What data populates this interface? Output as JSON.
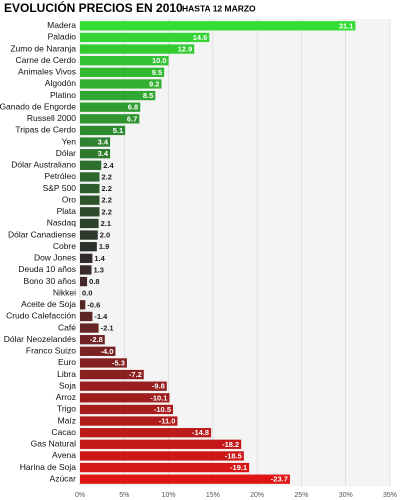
{
  "chart_data": {
    "type": "hbar",
    "title": "EVOLUCIÓN PRECIOS EN 2010",
    "subtitle": "HASTA 12 MARZO",
    "categories": [
      "Madera",
      "Paladio",
      "Zumo de Naranja",
      "Carne de Cerdo",
      "Animales Vivos",
      "Algodón",
      "Platino",
      "Ganado de Engorde",
      "Russell 2000",
      "Tripas de Cerdo",
      "Yen",
      "Dólar",
      "Dólar Australiano",
      "Petróleo",
      "S&P 500",
      "Oro",
      "Plata",
      "Nasdaq",
      "Dólar Canadiense",
      "Cobre",
      "Dow Jones",
      "Deuda 10 años",
      "Bono 30 años",
      "Nikkei",
      "Aceite de Soja",
      "Crudo Calefacción",
      "Café",
      "Dólar Neozelandés",
      "Franco Suizo",
      "Euro",
      "Libra",
      "Soja",
      "Arroz",
      "Trigo",
      "Maíz",
      "Cacao",
      "Gas Natural",
      "Avena",
      "Harina de Soja",
      "Azúcar"
    ],
    "values": [
      31.1,
      14.6,
      12.9,
      10.0,
      9.5,
      9.2,
      8.5,
      6.8,
      6.7,
      5.1,
      3.4,
      3.4,
      2.4,
      2.2,
      2.2,
      2.2,
      2.2,
      2.1,
      2.0,
      1.9,
      1.4,
      1.3,
      0.8,
      0.0,
      -0.6,
      -1.4,
      -2.1,
      -2.8,
      -4.0,
      -5.3,
      -7.2,
      -9.8,
      -10.1,
      -10.5,
      -11.0,
      -14.8,
      -18.2,
      -18.5,
      -19.1,
      -23.7
    ],
    "value_labels": [
      "31.1",
      "14.6",
      "12.9",
      "10.0",
      "9.5",
      "9.2",
      "8.5",
      "6.8",
      "6.7",
      "5.1",
      "3.4",
      "3.4",
      "2.4",
      "2.2",
      "2.2",
      "2.2",
      "2.2",
      "2.1",
      "2.0",
      "1.9",
      "1.4",
      "1.3",
      "0.8",
      "0.0",
      "-0.6",
      "-1.4",
      "-2.1",
      "-2.8",
      "-4.0",
      "-5.3",
      "-7.2",
      "-9.8",
      "-10.1",
      "-10.5",
      "-11.0",
      "-14.8",
      "-18.2",
      "-18.5",
      "-19.1",
      "-23.7"
    ],
    "color_scale": [
      "#33dd33",
      "#2b2b2b",
      "#e01515"
    ],
    "xlim": [
      0,
      35
    ],
    "xticks": [
      {
        "value": 0,
        "label": "0%"
      },
      {
        "value": 5,
        "label": "5%"
      },
      {
        "value": 10,
        "label": "10%"
      },
      {
        "value": 15,
        "label": "15%"
      },
      {
        "value": 20,
        "label": "20%"
      },
      {
        "value": 25,
        "label": "25%"
      },
      {
        "value": 30,
        "label": "30%"
      },
      {
        "value": 35,
        "label": "35%"
      }
    ],
    "grid": true
  }
}
